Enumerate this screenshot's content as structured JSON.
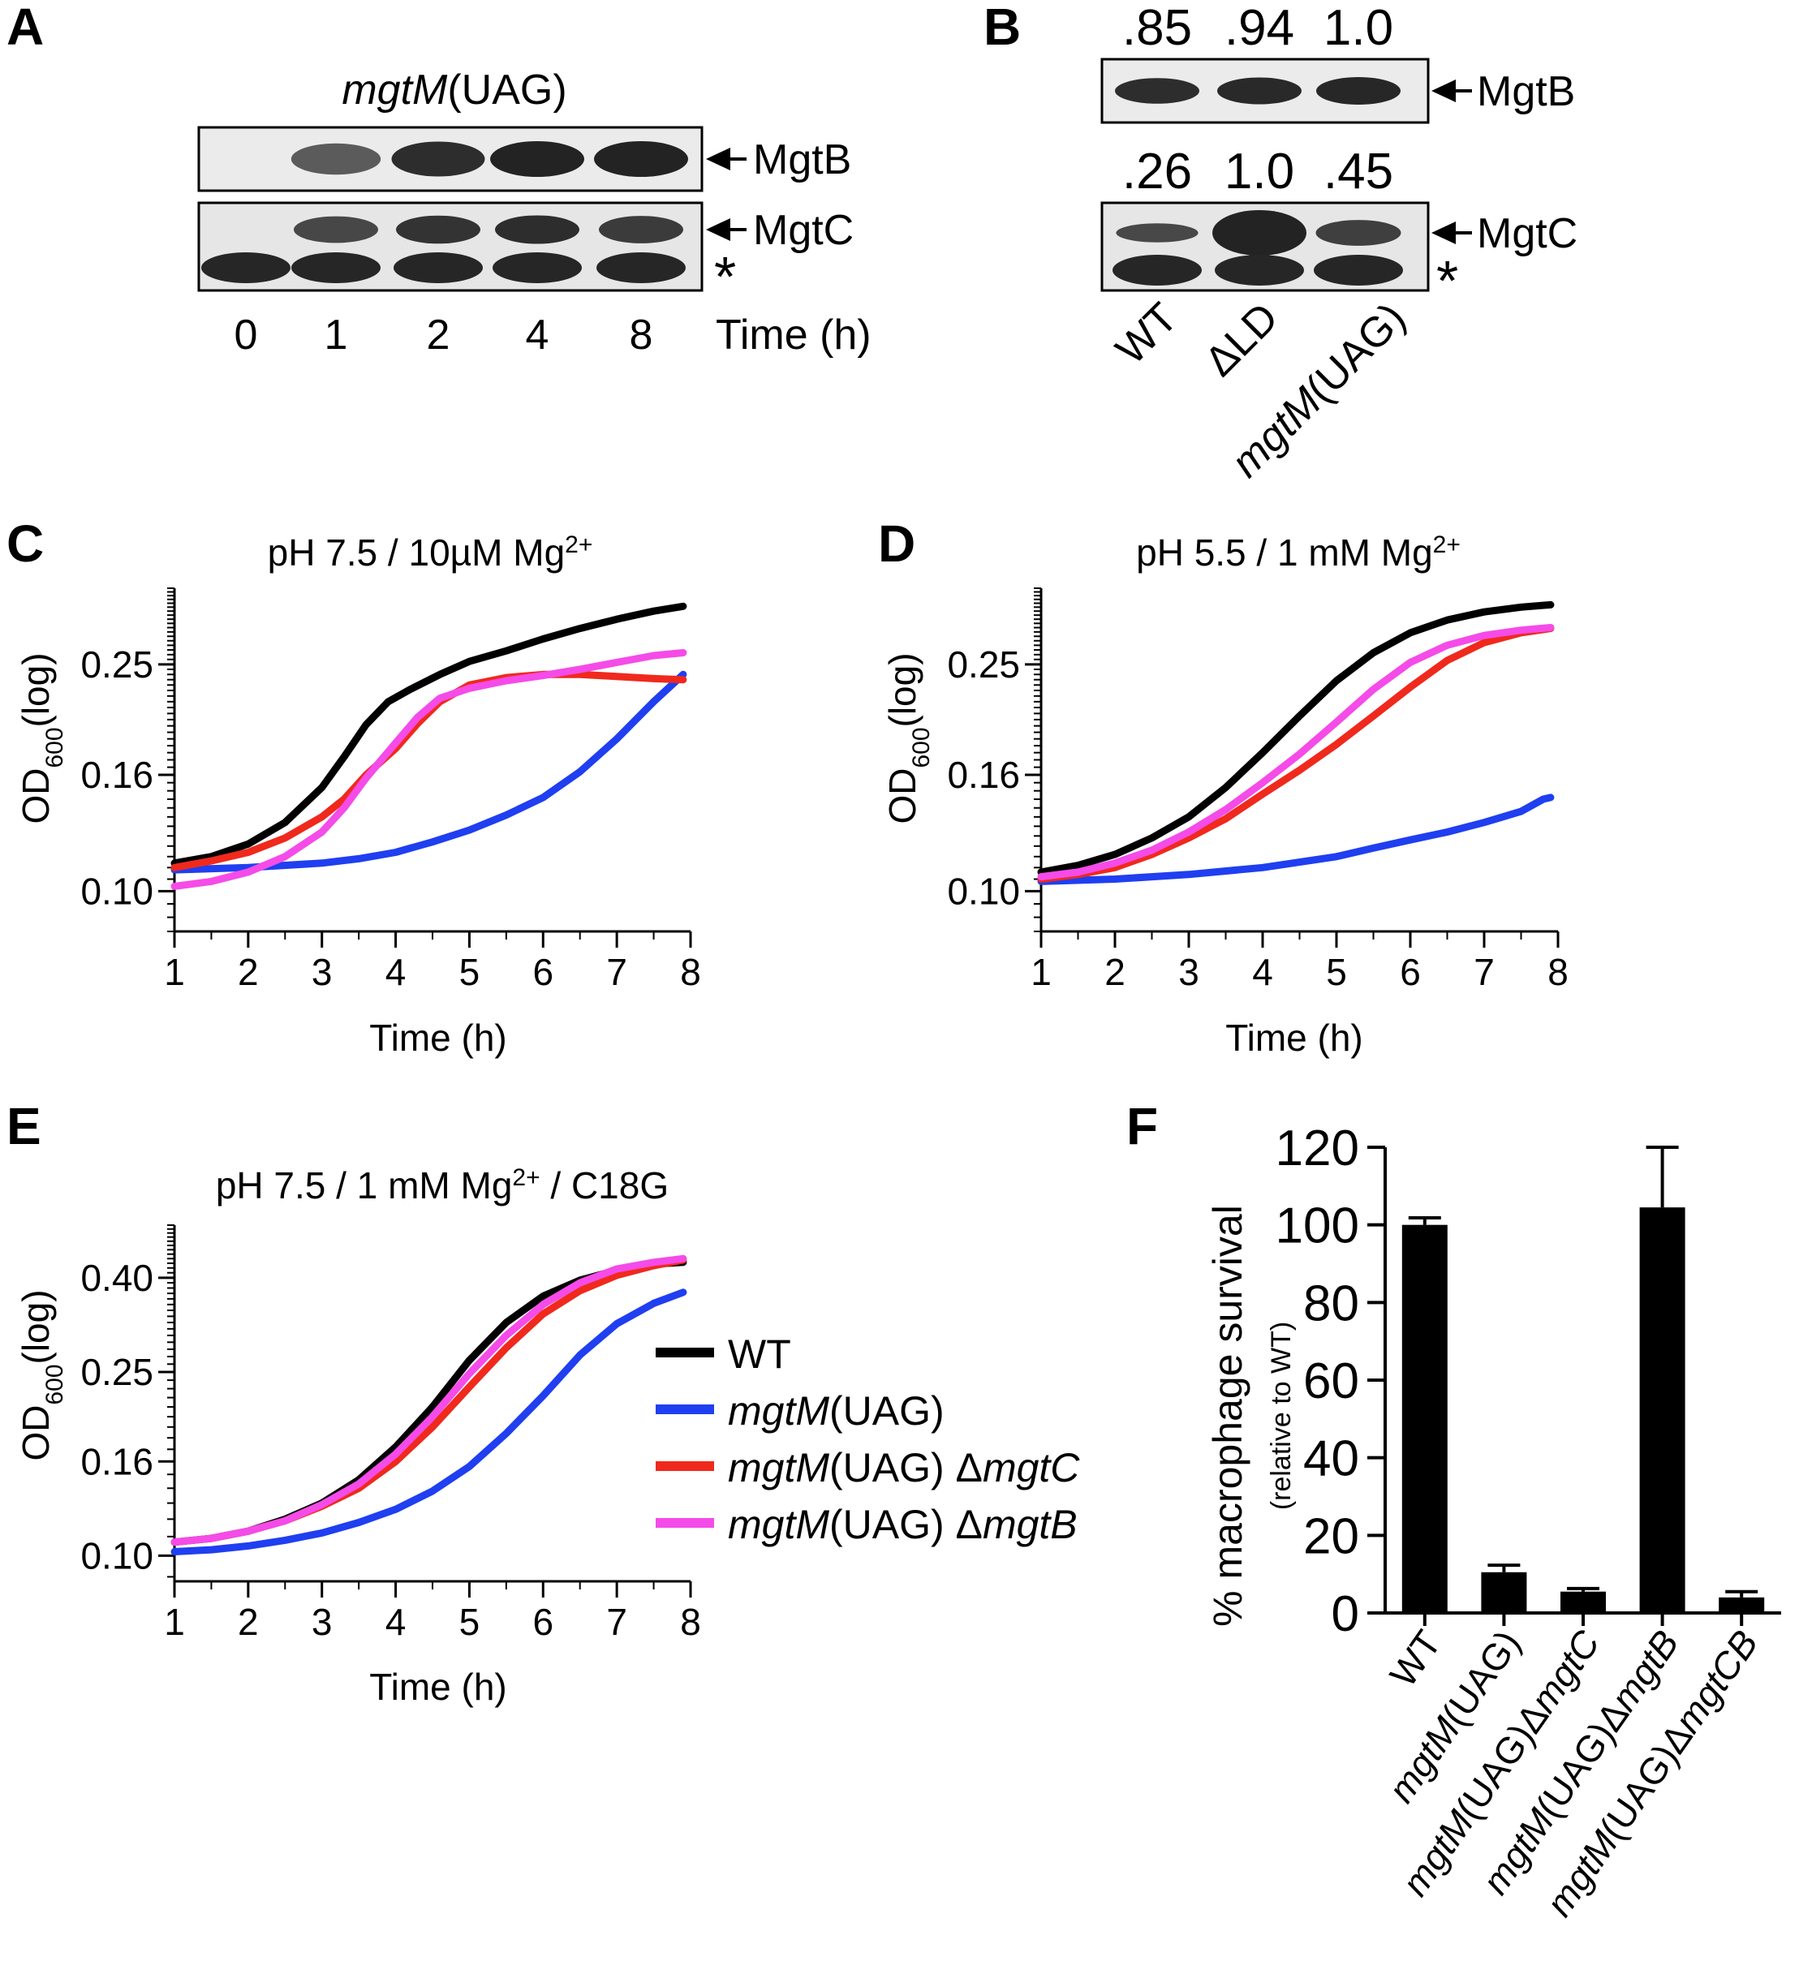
{
  "panel_labels": {
    "a": "A",
    "b": "B",
    "c": "C",
    "d": "D",
    "e": "E",
    "f": "F"
  },
  "blot_a": {
    "title_italic": "mgtM",
    "title_rest": "(UAG)",
    "band_labels": [
      "MgtB",
      "MgtC"
    ],
    "asterisk": "*",
    "lanes": [
      "0",
      "1",
      "2",
      "4",
      "8"
    ],
    "time_label": "Time (h)",
    "mgtb_intensity": [
      0,
      0.72,
      0.95,
      1.0,
      1.0
    ],
    "mgtc_intensity": [
      0,
      0.82,
      0.92,
      0.95,
      0.88
    ]
  },
  "blot_b": {
    "mgtb_values": [
      ".85",
      ".94",
      "1.0"
    ],
    "mgtc_values": [
      ".26",
      "1.0",
      ".45"
    ],
    "band_labels": [
      "MgtB",
      "MgtC"
    ],
    "asterisk": "*",
    "lane_wt": "WT",
    "lane_ld": "ΔLD",
    "lane_mut_italic": "mgtM",
    "lane_mut_rest": "(UAG)"
  },
  "legend": {
    "entries": [
      {
        "italic": "",
        "rest": "WT",
        "del": "",
        "gene": ""
      },
      {
        "italic": "mgtM",
        "rest": "(UAG)",
        "del": "",
        "gene": ""
      },
      {
        "italic": "mgtM",
        "rest": "(UAG) ",
        "del": "Δ",
        "gene": "mgtC"
      },
      {
        "italic": "mgtM",
        "rest": "(UAG) ",
        "del": "Δ",
        "gene": "mgtB"
      }
    ]
  },
  "colors": {
    "wt": "#000000",
    "mgtM": "#1f3ff0",
    "dC": "#f0291d",
    "dB": "#f54be8"
  },
  "chart_data": [
    {
      "id": "C",
      "type": "line",
      "title_text": "pH 7.5 / 10µM Mg",
      "title_sup": "2+",
      "title_after": "",
      "xlabel": "Time (h)",
      "ylabel_main": "OD",
      "ylabel_sub": "600",
      "ylabel_after": "(log)",
      "xlim": [
        1,
        8
      ],
      "ylim": [
        0.085,
        0.34
      ],
      "yscale": "log",
      "x_ticks": [
        "1",
        "2",
        "3",
        "4",
        "5",
        "6",
        "7",
        "8"
      ],
      "y_ticks": [
        {
          "value": 0.1,
          "label": "0.10"
        },
        {
          "value": 0.16,
          "label": "0.16"
        },
        {
          "value": 0.25,
          "label": "0.25"
        }
      ],
      "series": [
        {
          "name": "WT",
          "color": "#000000",
          "x": [
            1,
            1.5,
            2,
            2.5,
            3,
            3.3,
            3.6,
            3.9,
            4.2,
            4.6,
            5,
            5.5,
            6,
            6.5,
            7,
            7.5,
            7.9
          ],
          "y": [
            0.112,
            0.115,
            0.121,
            0.132,
            0.152,
            0.172,
            0.196,
            0.215,
            0.226,
            0.24,
            0.253,
            0.264,
            0.277,
            0.289,
            0.3,
            0.31,
            0.316
          ]
        },
        {
          "name": "mgtM(UAG)",
          "color": "#1f3ff0",
          "x": [
            1,
            2,
            3,
            3.5,
            4,
            4.5,
            5,
            5.5,
            6,
            6.5,
            7,
            7.5,
            7.9
          ],
          "y": [
            0.109,
            0.11,
            0.112,
            0.114,
            0.117,
            0.122,
            0.128,
            0.136,
            0.146,
            0.162,
            0.185,
            0.215,
            0.24
          ]
        },
        {
          "name": "mgtM(UAG) ΔmgtC",
          "color": "#f0291d",
          "x": [
            1,
            1.5,
            2,
            2.5,
            3,
            3.3,
            3.6,
            4,
            4.3,
            4.6,
            5,
            5.5,
            6,
            6.5,
            7,
            7.5,
            7.9
          ],
          "y": [
            0.11,
            0.113,
            0.117,
            0.124,
            0.135,
            0.145,
            0.16,
            0.178,
            0.197,
            0.215,
            0.23,
            0.237,
            0.24,
            0.24,
            0.238,
            0.236,
            0.235
          ]
        },
        {
          "name": "mgtM(UAG) ΔmgtB",
          "color": "#f54be8",
          "x": [
            1,
            1.5,
            2,
            2.5,
            3,
            3.3,
            3.6,
            4,
            4.3,
            4.6,
            5,
            5.5,
            6,
            6.5,
            7,
            7.5,
            7.9
          ],
          "y": [
            0.102,
            0.104,
            0.108,
            0.115,
            0.127,
            0.14,
            0.158,
            0.182,
            0.202,
            0.218,
            0.227,
            0.234,
            0.239,
            0.245,
            0.252,
            0.259,
            0.262
          ]
        }
      ]
    },
    {
      "id": "D",
      "type": "line",
      "title_text": "pH 5.5 / 1 mM Mg",
      "title_sup": "2+",
      "title_after": "",
      "xlabel": "Time (h)",
      "ylabel_main": "OD",
      "ylabel_sub": "600",
      "ylabel_after": "(log)",
      "xlim": [
        1,
        8
      ],
      "ylim": [
        0.085,
        0.34
      ],
      "yscale": "log",
      "x_ticks": [
        "1",
        "2",
        "3",
        "4",
        "5",
        "6",
        "7",
        "8"
      ],
      "y_ticks": [
        {
          "value": 0.1,
          "label": "0.10"
        },
        {
          "value": 0.16,
          "label": "0.16"
        },
        {
          "value": 0.25,
          "label": "0.25"
        }
      ],
      "series": [
        {
          "name": "WT",
          "color": "#000000",
          "x": [
            1,
            1.5,
            2,
            2.5,
            3,
            3.5,
            4,
            4.5,
            5,
            5.5,
            6,
            6.5,
            7,
            7.5,
            7.9
          ],
          "y": [
            0.108,
            0.111,
            0.116,
            0.124,
            0.135,
            0.152,
            0.175,
            0.203,
            0.234,
            0.262,
            0.284,
            0.299,
            0.309,
            0.315,
            0.318
          ]
        },
        {
          "name": "mgtM(UAG)",
          "color": "#1f3ff0",
          "x": [
            1,
            2,
            3,
            4,
            5,
            5.5,
            6,
            6.5,
            7,
            7.5,
            7.8,
            7.9
          ],
          "y": [
            0.104,
            0.105,
            0.107,
            0.11,
            0.115,
            0.119,
            0.123,
            0.127,
            0.132,
            0.138,
            0.145,
            0.146
          ]
        },
        {
          "name": "mgtM(UAG) ΔmgtC",
          "color": "#f0291d",
          "x": [
            1,
            1.5,
            2,
            2.5,
            3,
            3.5,
            4,
            4.5,
            5,
            5.5,
            6,
            6.5,
            7,
            7.5,
            7.9
          ],
          "y": [
            0.105,
            0.107,
            0.11,
            0.116,
            0.124,
            0.134,
            0.148,
            0.163,
            0.181,
            0.203,
            0.228,
            0.254,
            0.273,
            0.284,
            0.289
          ]
        },
        {
          "name": "mgtM(UAG) ΔmgtB",
          "color": "#f54be8",
          "x": [
            1,
            1.5,
            2,
            2.5,
            3,
            3.5,
            4,
            4.5,
            5,
            5.5,
            6,
            6.5,
            7,
            7.5,
            7.9
          ],
          "y": [
            0.106,
            0.108,
            0.112,
            0.118,
            0.127,
            0.139,
            0.155,
            0.174,
            0.198,
            0.226,
            0.252,
            0.27,
            0.281,
            0.287,
            0.29
          ]
        }
      ]
    },
    {
      "id": "E",
      "type": "line",
      "title_text": "pH 7.5 / 1 mM Mg",
      "title_sup": "2+",
      "title_after": " / C18G",
      "xlabel": "Time (h)",
      "ylabel_main": "OD",
      "ylabel_sub": "600",
      "ylabel_after": "(log)",
      "xlim": [
        1,
        8
      ],
      "ylim": [
        0.088,
        0.52
      ],
      "yscale": "log",
      "x_ticks": [
        "1",
        "2",
        "3",
        "4",
        "5",
        "6",
        "7",
        "8"
      ],
      "y_ticks": [
        {
          "value": 0.1,
          "label": "0.10"
        },
        {
          "value": 0.16,
          "label": "0.16"
        },
        {
          "value": 0.25,
          "label": "0.25"
        },
        {
          "value": 0.4,
          "label": "0.40"
        }
      ],
      "series": [
        {
          "name": "WT",
          "color": "#000000",
          "x": [
            1,
            1.5,
            2,
            2.5,
            3,
            3.5,
            4,
            4.5,
            5,
            5.5,
            6,
            6.5,
            7,
            7.5,
            7.9
          ],
          "y": [
            0.107,
            0.109,
            0.113,
            0.12,
            0.13,
            0.146,
            0.172,
            0.21,
            0.265,
            0.32,
            0.365,
            0.395,
            0.415,
            0.428,
            0.432
          ]
        },
        {
          "name": "mgtM(UAG)",
          "color": "#1f3ff0",
          "x": [
            1,
            1.5,
            2,
            2.5,
            3,
            3.5,
            4,
            4.5,
            5,
            5.5,
            6,
            6.5,
            7,
            7.5,
            7.9
          ],
          "y": [
            0.102,
            0.103,
            0.105,
            0.108,
            0.112,
            0.118,
            0.126,
            0.138,
            0.156,
            0.184,
            0.222,
            0.272,
            0.318,
            0.352,
            0.372
          ]
        },
        {
          "name": "mgtM(UAG) ΔmgtC",
          "color": "#f0291d",
          "x": [
            1,
            1.5,
            2,
            2.5,
            3,
            3.5,
            4,
            4.5,
            5,
            5.5,
            6,
            6.5,
            7,
            7.5,
            7.9
          ],
          "y": [
            0.107,
            0.109,
            0.113,
            0.119,
            0.128,
            0.14,
            0.16,
            0.19,
            0.232,
            0.282,
            0.334,
            0.375,
            0.405,
            0.425,
            0.437
          ]
        },
        {
          "name": "mgtM(UAG) ΔmgtB",
          "color": "#f54be8",
          "x": [
            1,
            1.5,
            2,
            2.5,
            3,
            3.5,
            4,
            4.5,
            5,
            5.5,
            6,
            6.5,
            7,
            7.5,
            7.9
          ],
          "y": [
            0.107,
            0.109,
            0.113,
            0.119,
            0.129,
            0.143,
            0.166,
            0.2,
            0.248,
            0.3,
            0.35,
            0.39,
            0.418,
            0.432,
            0.44
          ]
        }
      ]
    },
    {
      "id": "F",
      "type": "bar",
      "ylabel": "% macrophage survival",
      "ylabel_small": "(relative to WT)",
      "ylim": [
        0,
        120
      ],
      "y_ticks": [
        "0",
        "20",
        "40",
        "60",
        "80",
        "100",
        "120"
      ],
      "categories": [
        {
          "italic": "",
          "rest": "WT",
          "gene": ""
        },
        {
          "italic": "mgtM",
          "rest": "(UAG)",
          "gene": ""
        },
        {
          "italic": "mgtM",
          "rest": "(UAG)Δ",
          "gene": "mgtC"
        },
        {
          "italic": "mgtM",
          "rest": "(UAG)Δ",
          "gene": "mgtB"
        },
        {
          "italic": "mgtM",
          "rest": "(UAG)Δ",
          "gene": "mgtCB"
        }
      ],
      "values": [
        100,
        10.5,
        5.5,
        104.5,
        4
      ],
      "errors": [
        1.8,
        1.8,
        0.8,
        15.5,
        1.5
      ]
    }
  ]
}
